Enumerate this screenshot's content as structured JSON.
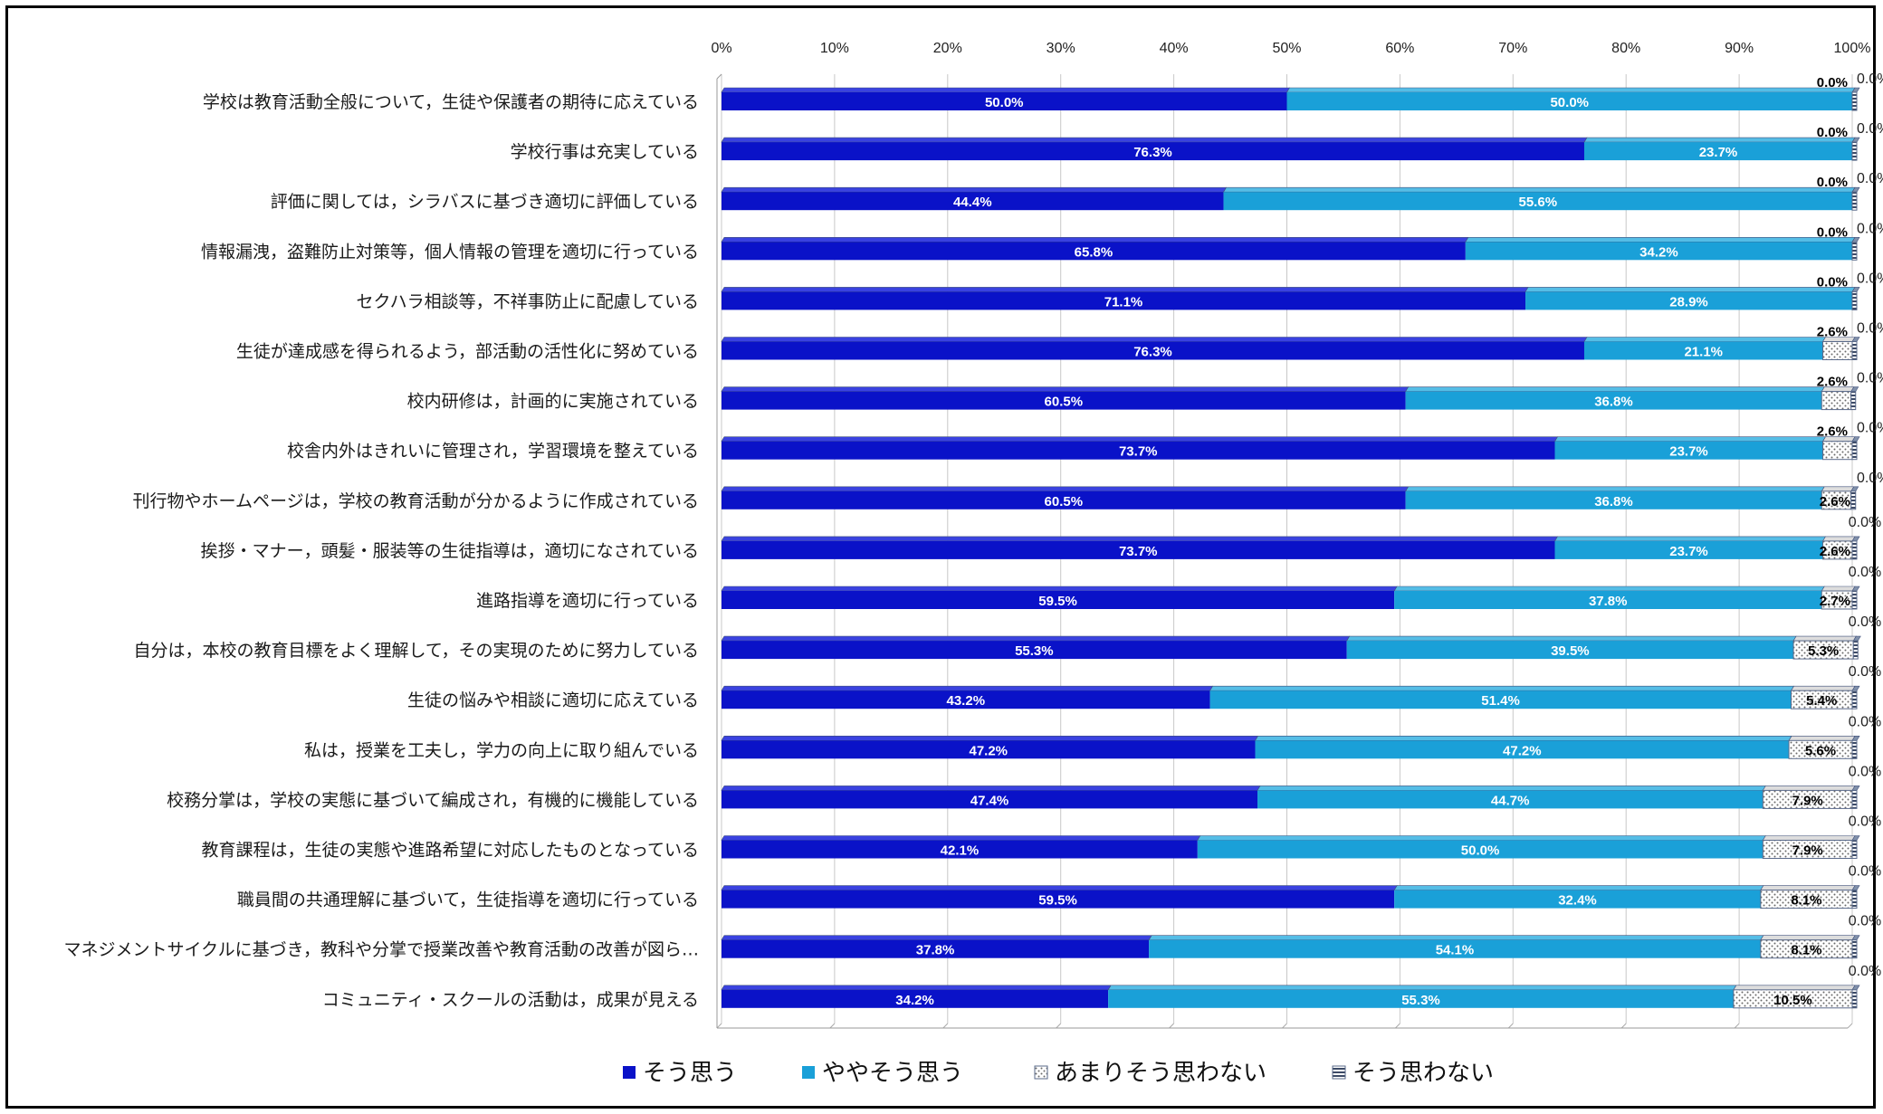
{
  "chart_data": {
    "type": "bar",
    "orientation": "horizontal",
    "stacked": "100%",
    "categories": [
      "学校は教育活動全般について，生徒や保護者の期待に応えている",
      "学校行事は充実している",
      "評価に関しては，シラバスに基づき適切に評価している",
      "情報漏洩，盗難防止対策等，個人情報の管理を適切に行っている",
      "セクハラ相談等，不祥事防止に配慮している",
      "生徒が達成感を得られるよう，部活動の活性化に努めている",
      "校内研修は，計画的に実施されている",
      "校舎内外はきれいに管理され，学習環境を整えている",
      "刊行物やホームページは，学校の教育活動が分かるように作成されている",
      "挨拶・マナー，頭髪・服装等の生徒指導は，適切になされている",
      "進路指導を適切に行っている",
      "自分は，本校の教育目標をよく理解して，その実現のために努力している",
      "生徒の悩みや相談に適切に応えている",
      "私は，授業を工夫し，学力の向上に取り組んでいる",
      "校務分掌は，学校の実態に基づいて編成され，有機的に機能している",
      "教育課程は，生徒の実態や進路希望に対応したものとなっている",
      "職員間の共通理解に基づいて，生徒指導を適切に行っている",
      "マネジメントサイクルに基づき，教科や分掌で授業改善や教育活動の改善が図ら…",
      "コミュニティ・スクールの活動は，成果が見える"
    ],
    "series": [
      {
        "name": "そう思う",
        "color": "#0a12c8",
        "values": [
          50.0,
          76.3,
          44.4,
          65.8,
          71.1,
          76.3,
          60.5,
          73.7,
          60.5,
          73.7,
          59.5,
          55.3,
          43.2,
          47.2,
          47.4,
          42.1,
          59.5,
          37.8,
          34.2
        ]
      },
      {
        "name": "ややそう思う",
        "color": "#1aa0d8",
        "values": [
          50.0,
          23.7,
          55.6,
          34.2,
          28.9,
          21.1,
          36.8,
          23.7,
          36.8,
          23.7,
          37.8,
          39.5,
          51.4,
          47.2,
          44.7,
          50.0,
          32.4,
          54.1,
          55.3
        ]
      },
      {
        "name": "あまりそう思わない",
        "color": "#ffffff",
        "values": [
          0.0,
          0.0,
          0.0,
          0.0,
          0.0,
          2.6,
          2.6,
          2.6,
          2.6,
          2.6,
          2.7,
          5.3,
          5.4,
          5.6,
          7.9,
          7.9,
          8.1,
          8.1,
          10.5
        ]
      },
      {
        "name": "そう思わない",
        "color": "#5a6a8a",
        "values": [
          0.0,
          0.0,
          0.0,
          0.0,
          0.0,
          0.0,
          0.0,
          0.0,
          0.0,
          0.0,
          0.0,
          0.0,
          0.0,
          0.0,
          0.0,
          0.0,
          0.0,
          0.0,
          0.0
        ]
      }
    ],
    "data_labels": [
      [
        "50.0%",
        "50.0%",
        "0.0%",
        "0.0%"
      ],
      [
        "76.3%",
        "23.7%",
        "0.0%",
        "0.0%"
      ],
      [
        "44.4%",
        "55.6%",
        "0.0%",
        "0.0%"
      ],
      [
        "65.8%",
        "34.2%",
        "0.0%",
        "0.0%"
      ],
      [
        "71.1%",
        "28.9%",
        "0.0%",
        "0.0%"
      ],
      [
        "76.3%",
        "21.1%",
        "2.6%",
        "0.0%"
      ],
      [
        "60.5%",
        "36.8%",
        "2.6%",
        "0.0%"
      ],
      [
        "73.7%",
        "23.7%",
        "2.6%",
        "0.0%"
      ],
      [
        "60.5%",
        "36.8%",
        "2.6%",
        "0.0%"
      ],
      [
        "73.7%",
        "23.7%",
        "2.6%",
        "0.0%"
      ],
      [
        "59.5%",
        "37.8%",
        "2.7%",
        "0.0%"
      ],
      [
        "55.3%",
        "39.5%",
        "5.3%",
        "0.0%"
      ],
      [
        "43.2%",
        "51.4%",
        "5.4%",
        "0.0%"
      ],
      [
        "47.2%",
        "47.2%",
        "5.6%",
        "0.0%"
      ],
      [
        "47.4%",
        "44.7%",
        "7.9%",
        "0.0%"
      ],
      [
        "42.1%",
        "50.0%",
        "7.9%",
        "0.0%"
      ],
      [
        "59.5%",
        "32.4%",
        "8.1%",
        "0.0%"
      ],
      [
        "37.8%",
        "54.1%",
        "8.1%",
        "0.0%"
      ],
      [
        "34.2%",
        "55.3%",
        "10.5%",
        "0.0%"
      ]
    ],
    "xaxis": {
      "ticks": [
        "0%",
        "10%",
        "20%",
        "30%",
        "40%",
        "50%",
        "60%",
        "70%",
        "80%",
        "90%",
        "100%"
      ],
      "position": "top",
      "xlim": [
        0,
        100
      ]
    },
    "grid": true,
    "legend_position": "bottom"
  }
}
